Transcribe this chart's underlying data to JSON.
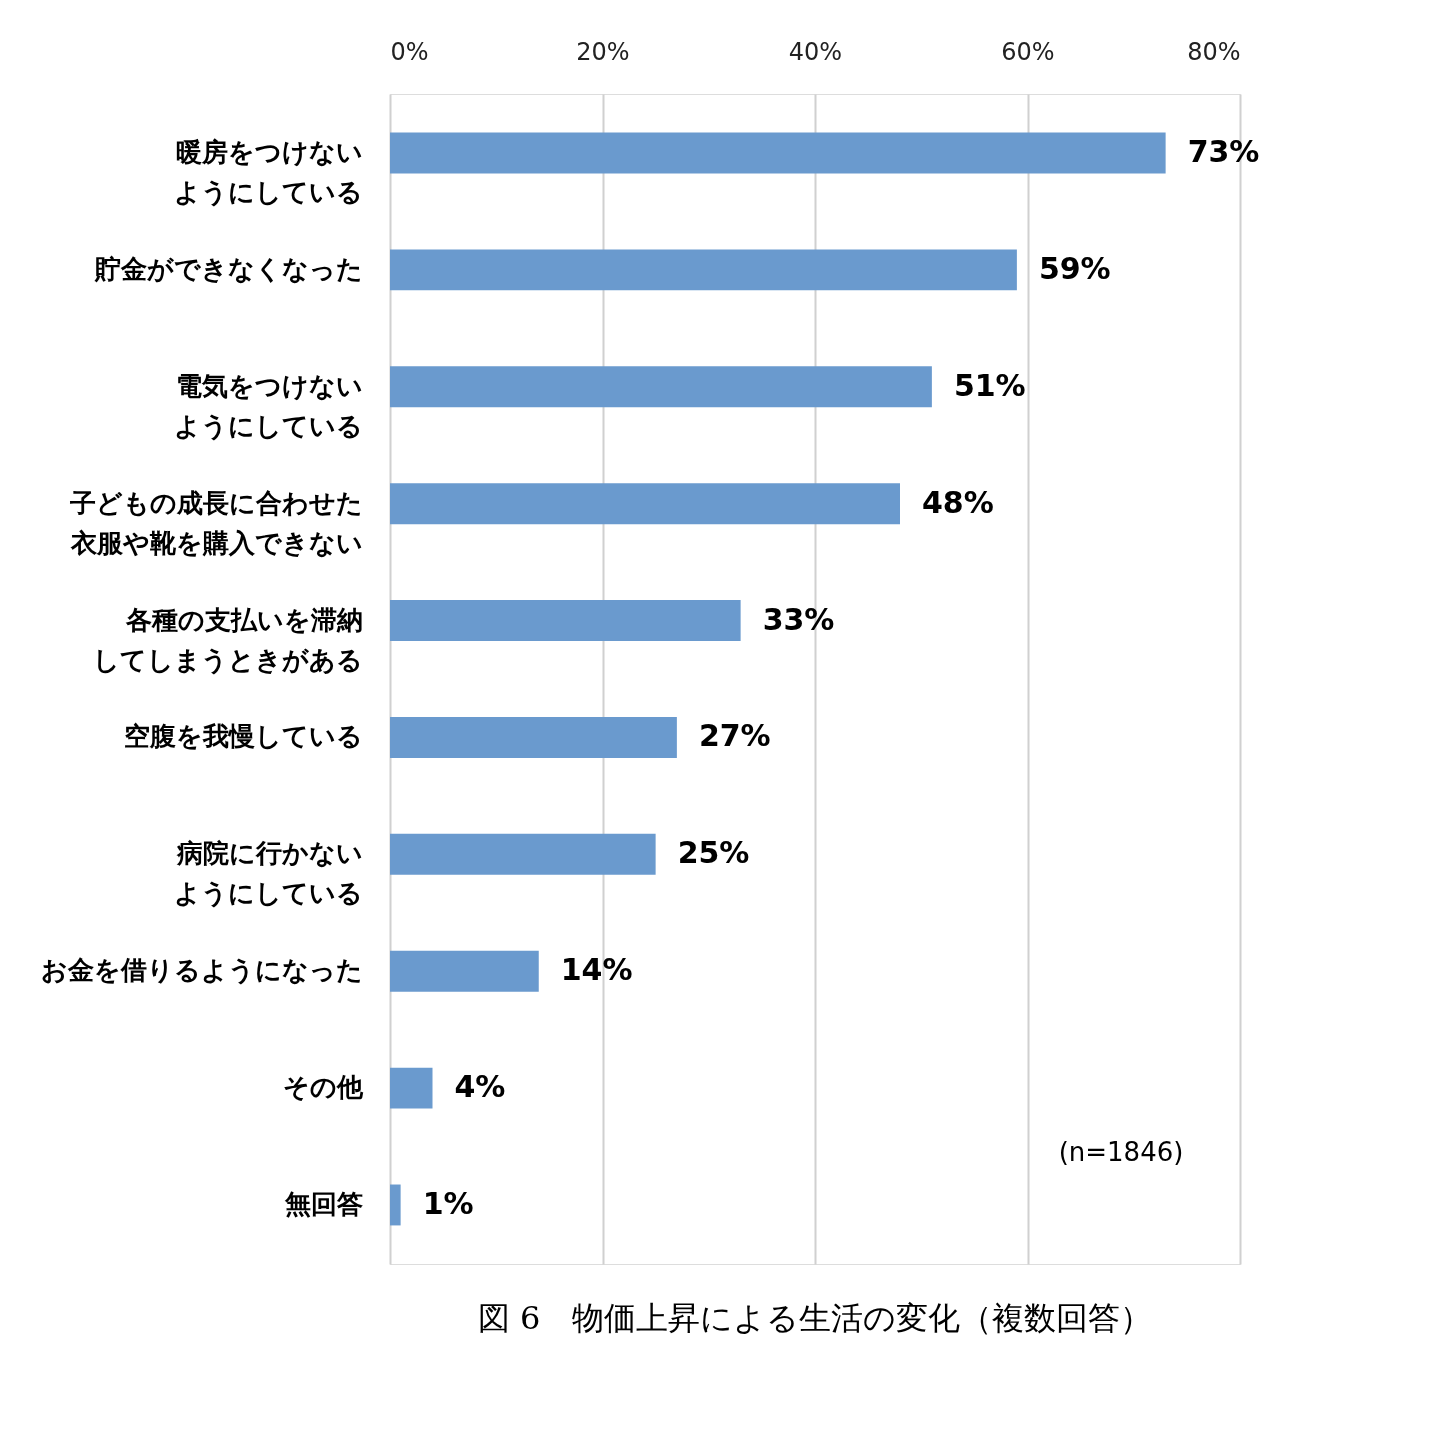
{
  "chart_data": {
    "type": "bar",
    "orientation": "horizontal",
    "title": "図 6　物価上昇による生活の変化（複数回答）",
    "categories": [
      "暖房をつけないようにしている",
      "貯金ができなくなった",
      "電気をつけないようにしている",
      "子どもの成長に合わせた衣服や靴を購入できない",
      "各種の支払いを滞納してしまうときがある",
      "空腹を我慢している",
      "病院に行かないようにしている",
      "お金を借りるようになった",
      "その他",
      "無回答"
    ],
    "values": [
      73,
      59,
      51,
      48,
      33,
      27,
      25,
      14,
      4,
      1
    ],
    "value_labels": [
      "73%",
      "59%",
      "51%",
      "48%",
      "33%",
      "27%",
      "25%",
      "14%",
      "4%",
      "1%"
    ],
    "color": "#6a9ace",
    "xlim": [
      0,
      80
    ],
    "xticks": [
      {
        "value": 0,
        "label": "0%"
      },
      {
        "value": 20,
        "label": "20%"
      },
      {
        "value": 40,
        "label": "40%"
      },
      {
        "value": 60,
        "label": "60%"
      },
      {
        "value": 80,
        "label": "80%"
      }
    ],
    "grid": "x",
    "annotations": [
      "(n=1846)"
    ]
  }
}
